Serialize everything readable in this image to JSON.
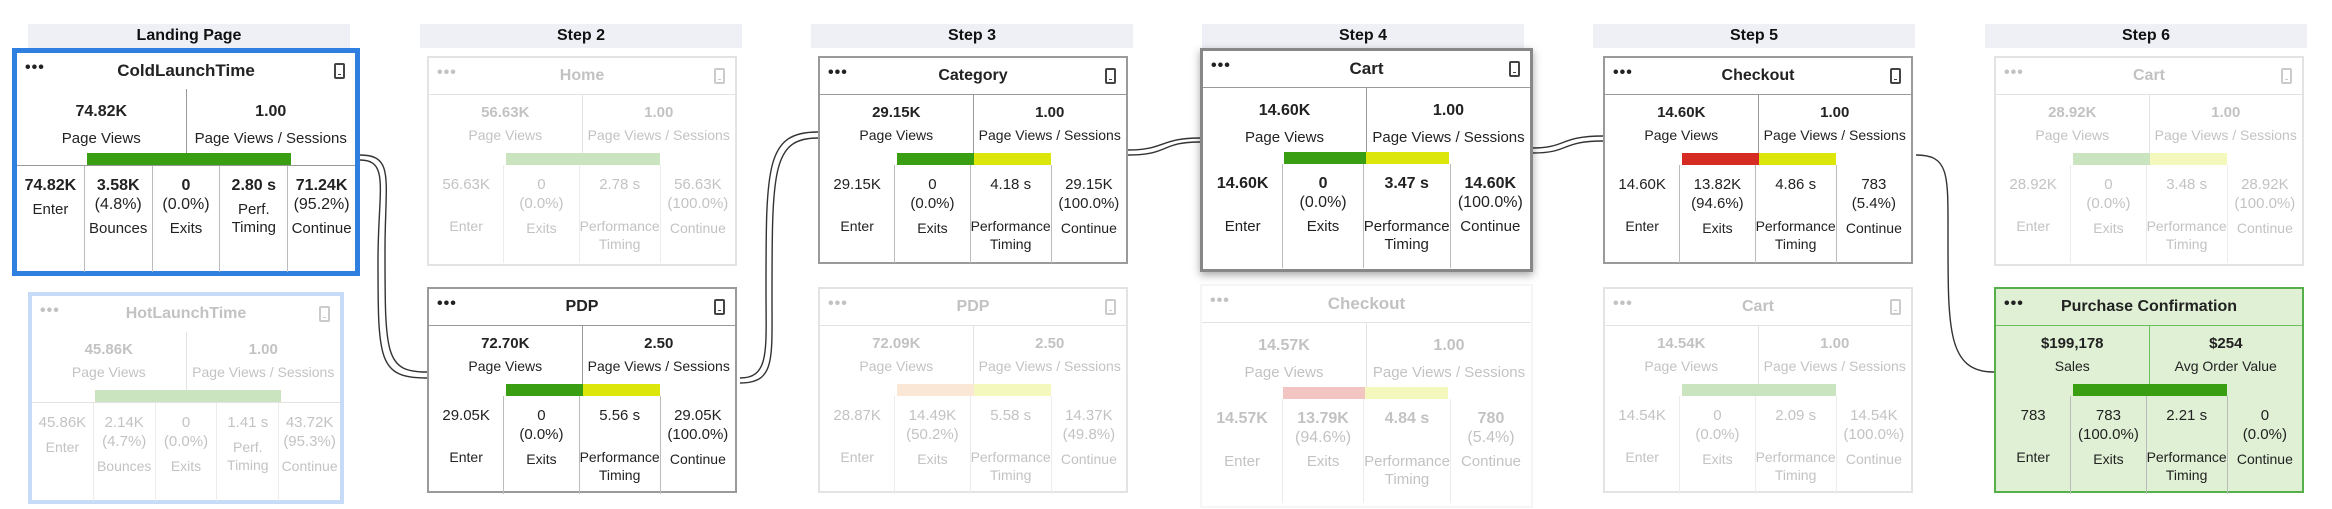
{
  "stages": [
    "Landing Page",
    "Step 2",
    "Step 3",
    "Step 4",
    "Step 5",
    "Step 6"
  ],
  "colors": {
    "green": "#3a9e12",
    "yellow": "#dde60a",
    "red": "#d52b22",
    "orange": "#f0a86a",
    "blue_border": "#2f7fe0",
    "purchase_bg": "#dff0d4"
  },
  "cards": {
    "coldlaunch": {
      "title": "ColdLaunchTime",
      "menu": "•••",
      "icon": "mobile-device-icon",
      "s1_val": "74.82K",
      "s1_lbl": "Page Views",
      "s2_val": "1.00",
      "s2_lbl": "Page Views / Sessions",
      "metrics": [
        {
          "v1": "74.82K",
          "v2": "",
          "label": "Enter"
        },
        {
          "v1": "3.58K",
          "v2": "(4.8%)",
          "label": "Bounces"
        },
        {
          "v1": "0",
          "v2": "(0.0%)",
          "label": "Exits"
        },
        {
          "v1": "2.80 s",
          "v2": "",
          "label": "Perf.\nTiming"
        },
        {
          "v1": "71.24K",
          "v2": "(95.2%)",
          "label": "Continue"
        }
      ]
    },
    "hotlaunch": {
      "title": "HotLaunchTime",
      "menu": "•••",
      "icon": "mobile-device-icon",
      "s1_val": "45.86K",
      "s1_lbl": "Page Views",
      "s2_val": "1.00",
      "s2_lbl": "Page Views / Sessions",
      "metrics": [
        {
          "v1": "45.86K",
          "v2": "",
          "label": "Enter"
        },
        {
          "v1": "2.14K",
          "v2": "(4.7%)",
          "label": "Bounces"
        },
        {
          "v1": "0",
          "v2": "(0.0%)",
          "label": "Exits"
        },
        {
          "v1": "1.41 s",
          "v2": "",
          "label": "Perf.\nTiming"
        },
        {
          "v1": "43.72K",
          "v2": "(95.3%)",
          "label": "Continue"
        }
      ]
    },
    "home": {
      "title": "Home",
      "menu": "•••",
      "icon": "mobile-device-icon",
      "s1_val": "56.63K",
      "s1_lbl": "Page Views",
      "s2_val": "1.00",
      "s2_lbl": "Page Views / Sessions",
      "metrics": [
        {
          "v1": "56.63K",
          "v2": "",
          "label": "Enter"
        },
        {
          "v1": "0",
          "v2": "(0.0%)",
          "label": "Exits"
        },
        {
          "v1": "2.78 s",
          "v2": "",
          "label": "Performance\nTiming"
        },
        {
          "v1": "56.63K",
          "v2": "(100.0%)",
          "label": "Continue"
        }
      ]
    },
    "pdp2": {
      "title": "PDP",
      "menu": "•••",
      "icon": "mobile-device-icon",
      "s1_val": "72.70K",
      "s1_lbl": "Page Views",
      "s2_val": "2.50",
      "s2_lbl": "Page Views / Sessions",
      "metrics": [
        {
          "v1": "29.05K",
          "v2": "",
          "label": "Enter"
        },
        {
          "v1": "0",
          "v2": "(0.0%)",
          "label": "Exits"
        },
        {
          "v1": "5.56 s",
          "v2": "",
          "label": "Performance\nTiming"
        },
        {
          "v1": "29.05K",
          "v2": "(100.0%)",
          "label": "Continue"
        }
      ]
    },
    "category": {
      "title": "Category",
      "menu": "•••",
      "icon": "mobile-device-icon",
      "s1_val": "29.15K",
      "s1_lbl": "Page Views",
      "s2_val": "1.00",
      "s2_lbl": "Page Views / Sessions",
      "metrics": [
        {
          "v1": "29.15K",
          "v2": "",
          "label": "Enter"
        },
        {
          "v1": "0",
          "v2": "(0.0%)",
          "label": "Exits"
        },
        {
          "v1": "4.18 s",
          "v2": "",
          "label": "Performance\nTiming"
        },
        {
          "v1": "29.15K",
          "v2": "(100.0%)",
          "label": "Continue"
        }
      ]
    },
    "pdp3": {
      "title": "PDP",
      "menu": "•••",
      "icon": "mobile-device-icon",
      "s1_val": "72.09K",
      "s1_lbl": "Page Views",
      "s2_val": "2.50",
      "s2_lbl": "Page Views / Sessions",
      "metrics": [
        {
          "v1": "28.87K",
          "v2": "",
          "label": "Enter"
        },
        {
          "v1": "14.49K",
          "v2": "(50.2%)",
          "label": "Exits"
        },
        {
          "v1": "5.58 s",
          "v2": "",
          "label": "Performance\nTiming"
        },
        {
          "v1": "14.37K",
          "v2": "(49.8%)",
          "label": "Continue"
        }
      ]
    },
    "cart4": {
      "title": "Cart",
      "menu": "•••",
      "icon": "mobile-device-icon",
      "s1_val": "14.60K",
      "s1_lbl": "Page Views",
      "s2_val": "1.00",
      "s2_lbl": "Page Views / Sessions",
      "metrics": [
        {
          "v1": "14.60K",
          "v2": "",
          "label": "Enter"
        },
        {
          "v1": "0",
          "v2": "(0.0%)",
          "label": "Exits"
        },
        {
          "v1": "3.47 s",
          "v2": "",
          "label": "Performance\nTiming"
        },
        {
          "v1": "14.60K",
          "v2": "(100.0%)",
          "label": "Continue"
        }
      ]
    },
    "checkout4": {
      "title": "Checkout",
      "menu": "•••",
      "icon": "",
      "s1_val": "14.57K",
      "s1_lbl": "Page Views",
      "s2_val": "1.00",
      "s2_lbl": "Page Views / Sessions",
      "metrics": [
        {
          "v1": "14.57K",
          "v2": "",
          "label": "Enter"
        },
        {
          "v1": "13.79K",
          "v2": "(94.6%)",
          "label": "Exits"
        },
        {
          "v1": "4.84 s",
          "v2": "",
          "label": "Performance\nTiming"
        },
        {
          "v1": "780",
          "v2": "(5.4%)",
          "label": "Continue"
        }
      ]
    },
    "checkout5": {
      "title": "Checkout",
      "menu": "•••",
      "icon": "mobile-device-icon",
      "s1_val": "14.60K",
      "s1_lbl": "Page Views",
      "s2_val": "1.00",
      "s2_lbl": "Page Views / Sessions",
      "metrics": [
        {
          "v1": "14.60K",
          "v2": "",
          "label": "Enter"
        },
        {
          "v1": "13.82K",
          "v2": "(94.6%)",
          "label": "Exits"
        },
        {
          "v1": "4.86 s",
          "v2": "",
          "label": "Performance\nTiming"
        },
        {
          "v1": "783",
          "v2": "(5.4%)",
          "label": "Continue"
        }
      ]
    },
    "cart5": {
      "title": "Cart",
      "menu": "•••",
      "icon": "mobile-device-icon",
      "s1_val": "14.54K",
      "s1_lbl": "Page Views",
      "s2_val": "1.00",
      "s2_lbl": "Page Views / Sessions",
      "metrics": [
        {
          "v1": "14.54K",
          "v2": "",
          "label": "Enter"
        },
        {
          "v1": "0",
          "v2": "(0.0%)",
          "label": "Exits"
        },
        {
          "v1": "2.09 s",
          "v2": "",
          "label": "Performance\nTiming"
        },
        {
          "v1": "14.54K",
          "v2": "(100.0%)",
          "label": "Continue"
        }
      ]
    },
    "cart6": {
      "title": "Cart",
      "menu": "•••",
      "icon": "mobile-device-icon",
      "s1_val": "28.92K",
      "s1_lbl": "Page Views",
      "s2_val": "1.00",
      "s2_lbl": "Page Views / Sessions",
      "metrics": [
        {
          "v1": "28.92K",
          "v2": "",
          "label": "Enter"
        },
        {
          "v1": "0",
          "v2": "(0.0%)",
          "label": "Exits"
        },
        {
          "v1": "3.48 s",
          "v2": "",
          "label": "Performance\nTiming"
        },
        {
          "v1": "28.92K",
          "v2": "(100.0%)",
          "label": "Continue"
        }
      ]
    },
    "purchase": {
      "title": "Purchase Confirmation",
      "menu": "•••",
      "icon": "",
      "s1_val": "$199,178",
      "s1_lbl": "Sales",
      "s2_val": "$254",
      "s2_lbl": "Avg Order Value",
      "metrics": [
        {
          "v1": "783",
          "v2": "",
          "label": "Enter"
        },
        {
          "v1": "783",
          "v2": "(100.0%)",
          "label": "Exits"
        },
        {
          "v1": "2.21 s",
          "v2": "",
          "label": "Performance\nTiming"
        },
        {
          "v1": "0",
          "v2": "(0.0%)",
          "label": "Continue"
        }
      ]
    }
  }
}
